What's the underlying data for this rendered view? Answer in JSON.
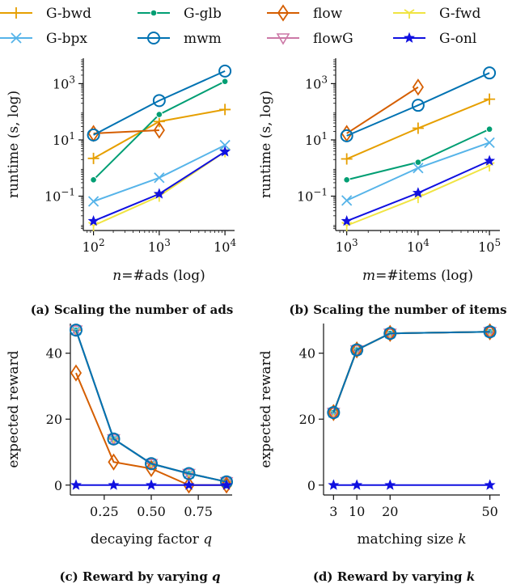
{
  "legend": [
    {
      "key": "gbwd",
      "label": "G-bwd",
      "color": "#e69f00",
      "marker": "plus"
    },
    {
      "key": "gglb",
      "label": "G-glb",
      "color": "#009e73",
      "marker": "dot"
    },
    {
      "key": "flow",
      "label": "flow",
      "color": "#d55e00",
      "marker": "diamond"
    },
    {
      "key": "gfwd",
      "label": "G-fwd",
      "color": "#f0e442",
      "marker": "tri_down"
    },
    {
      "key": "gbpx",
      "label": "G-bpx",
      "color": "#56b4e9",
      "marker": "x"
    },
    {
      "key": "mwm",
      "label": "mwm",
      "color": "#0072b2",
      "marker": "circle"
    },
    {
      "key": "flowG",
      "label": "flowG",
      "color": "#cc79a7",
      "marker": "tri_down_open"
    },
    {
      "key": "gonl",
      "label": "G-onl",
      "color": "#1010e0",
      "marker": "star"
    }
  ],
  "chart_data": [
    {
      "id": "a",
      "type": "line",
      "caption": "(a) Scaling the number of ads",
      "xlabel_italic": "n",
      "xlabel_rest": "=#ads (log)",
      "ylabel": "runtime (s, log)",
      "xscale": "log",
      "yscale": "log",
      "xlim": [
        70,
        14000
      ],
      "ylim": [
        0.006,
        8000
      ],
      "xticks": [
        {
          "v": 100,
          "b": "10",
          "e": "2"
        },
        {
          "v": 1000,
          "b": "10",
          "e": "3"
        },
        {
          "v": 10000,
          "b": "10",
          "e": "4"
        }
      ],
      "yticks": [
        {
          "v": 0.1,
          "b": "10",
          "e": "−1"
        },
        {
          "v": 10,
          "b": "10",
          "e": "1"
        },
        {
          "v": 1000,
          "b": "10",
          "e": "3"
        }
      ],
      "series": [
        {
          "key": "gbwd",
          "x": [
            100,
            1000,
            10000
          ],
          "y": [
            2.2,
            45,
            120
          ]
        },
        {
          "key": "gglb",
          "x": [
            100,
            1000,
            10000
          ],
          "y": [
            0.38,
            80,
            1200
          ]
        },
        {
          "key": "flow",
          "x": [
            100,
            1000
          ],
          "y": [
            17,
            22
          ]
        },
        {
          "key": "gfwd",
          "x": [
            100,
            1000,
            10000
          ],
          "y": [
            0.009,
            0.1,
            3.8
          ]
        },
        {
          "key": "gbpx",
          "x": [
            100,
            1000,
            10000
          ],
          "y": [
            0.065,
            0.45,
            6.5
          ]
        },
        {
          "key": "mwm",
          "x": [
            100,
            1000,
            10000
          ],
          "y": [
            15,
            250,
            2800
          ]
        },
        {
          "key": "gonl",
          "x": [
            100,
            1000,
            10000
          ],
          "y": [
            0.013,
            0.12,
            3.8
          ]
        }
      ]
    },
    {
      "id": "b",
      "type": "line",
      "caption": "(b) Scaling the number of items",
      "xlabel_italic": "m",
      "xlabel_rest": "=#items (log)",
      "ylabel": "runtime (s, log)",
      "xscale": "log",
      "yscale": "log",
      "xlim": [
        700,
        140000
      ],
      "ylim": [
        0.006,
        8000
      ],
      "xticks": [
        {
          "v": 1000,
          "b": "10",
          "e": "3"
        },
        {
          "v": 10000,
          "b": "10",
          "e": "4"
        },
        {
          "v": 100000,
          "b": "10",
          "e": "5"
        }
      ],
      "yticks": [
        {
          "v": 0.1,
          "b": "10",
          "e": "−1"
        },
        {
          "v": 10,
          "b": "10",
          "e": "1"
        },
        {
          "v": 1000,
          "b": "10",
          "e": "3"
        }
      ],
      "series": [
        {
          "key": "gbwd",
          "x": [
            1000,
            10000,
            100000
          ],
          "y": [
            2.1,
            26,
            280
          ]
        },
        {
          "key": "gglb",
          "x": [
            1000,
            10000,
            100000
          ],
          "y": [
            0.38,
            1.6,
            24
          ]
        },
        {
          "key": "flow",
          "x": [
            1000,
            10000
          ],
          "y": [
            17,
            750
          ]
        },
        {
          "key": "gfwd",
          "x": [
            1000,
            10000,
            100000
          ],
          "y": [
            0.009,
            0.09,
            1.2
          ]
        },
        {
          "key": "gbpx",
          "x": [
            1000,
            10000,
            100000
          ],
          "y": [
            0.07,
            1.0,
            8
          ]
        },
        {
          "key": "mwm",
          "x": [
            1000,
            10000,
            100000
          ],
          "y": [
            14,
            170,
            2400
          ]
        },
        {
          "key": "gonl",
          "x": [
            1000,
            10000,
            100000
          ],
          "y": [
            0.013,
            0.13,
            1.8
          ]
        }
      ]
    },
    {
      "id": "c",
      "type": "line",
      "caption_prefix": "(c) Reward by varying ",
      "caption_italic": "q",
      "xlabel_rest": "decaying factor ",
      "xlabel_italic_suffix": "q",
      "ylabel": "expected reward",
      "xscale": "linear",
      "yscale": "linear",
      "xlim": [
        0.07,
        0.93
      ],
      "ylim": [
        -3,
        49
      ],
      "xticks": [
        {
          "v": 0.25,
          "t": "0.25"
        },
        {
          "v": 0.5,
          "t": "0.50"
        },
        {
          "v": 0.75,
          "t": "0.75"
        }
      ],
      "yticks": [
        {
          "v": 0,
          "t": "0"
        },
        {
          "v": 20,
          "t": "20"
        },
        {
          "v": 40,
          "t": "40"
        }
      ],
      "series": [
        {
          "key": "gbwd",
          "x": [
            0.1,
            0.3,
            0.5,
            0.7,
            0.9
          ],
          "y": [
            47,
            14,
            6.5,
            3.5,
            1
          ]
        },
        {
          "key": "gglb",
          "x": [
            0.1,
            0.3,
            0.5,
            0.7,
            0.9
          ],
          "y": [
            47,
            14,
            6.5,
            3.5,
            1
          ]
        },
        {
          "key": "gfwd",
          "x": [
            0.1,
            0.3,
            0.5,
            0.7,
            0.9
          ],
          "y": [
            47,
            14,
            6.5,
            3.5,
            1
          ]
        },
        {
          "key": "gbpx",
          "x": [
            0.1,
            0.3,
            0.5,
            0.7,
            0.9
          ],
          "y": [
            47,
            14,
            6.5,
            3.5,
            1
          ]
        },
        {
          "key": "flowG",
          "x": [
            0.1,
            0.3,
            0.5,
            0.7,
            0.9
          ],
          "y": [
            47,
            14,
            6.5,
            3.5,
            1
          ]
        },
        {
          "key": "flow",
          "x": [
            0.1,
            0.3,
            0.5,
            0.7,
            0.9
          ],
          "y": [
            34,
            7,
            5,
            0,
            0
          ]
        },
        {
          "key": "mwm",
          "x": [
            0.1,
            0.3,
            0.5,
            0.7,
            0.9
          ],
          "y": [
            47,
            14,
            6.5,
            3.5,
            1
          ]
        },
        {
          "key": "gonl",
          "x": [
            0.1,
            0.3,
            0.5,
            0.7,
            0.9
          ],
          "y": [
            0,
            0,
            0,
            0,
            0
          ]
        }
      ]
    },
    {
      "id": "d",
      "type": "line",
      "caption_prefix": "(d) Reward by varying ",
      "caption_italic": "k",
      "xlabel_rest": "matching size ",
      "xlabel_italic_suffix": "k",
      "ylabel": "expected reward",
      "xscale": "linear",
      "yscale": "linear",
      "xlim": [
        0,
        53
      ],
      "ylim": [
        -3,
        49
      ],
      "xticks": [
        {
          "v": 3,
          "t": "3"
        },
        {
          "v": 10,
          "t": "10"
        },
        {
          "v": 20,
          "t": "20"
        },
        {
          "v": 50,
          "t": "50"
        }
      ],
      "yticks": [
        {
          "v": 0,
          "t": "0"
        },
        {
          "v": 20,
          "t": "20"
        },
        {
          "v": 40,
          "t": "40"
        }
      ],
      "series": [
        {
          "key": "gbwd",
          "x": [
            3,
            10,
            20,
            50
          ],
          "y": [
            22,
            41,
            46,
            46.5
          ]
        },
        {
          "key": "gglb",
          "x": [
            3,
            10,
            20,
            50
          ],
          "y": [
            22,
            41,
            46,
            46.5
          ]
        },
        {
          "key": "gfwd",
          "x": [
            3,
            10,
            20,
            50
          ],
          "y": [
            22,
            41,
            46,
            46.5
          ]
        },
        {
          "key": "gbpx",
          "x": [
            3,
            10,
            20,
            50
          ],
          "y": [
            22,
            41,
            46,
            46.5
          ]
        },
        {
          "key": "flowG",
          "x": [
            3,
            10,
            20,
            50
          ],
          "y": [
            22,
            41,
            46,
            46.5
          ]
        },
        {
          "key": "flow",
          "x": [
            3,
            10,
            20,
            50
          ],
          "y": [
            22,
            41,
            46,
            46.5
          ]
        },
        {
          "key": "mwm",
          "x": [
            3,
            10,
            20,
            50
          ],
          "y": [
            22,
            41,
            46,
            46.5
          ]
        },
        {
          "key": "gonl",
          "x": [
            3,
            10,
            20,
            50
          ],
          "y": [
            0,
            0,
            0,
            0
          ]
        }
      ]
    }
  ]
}
